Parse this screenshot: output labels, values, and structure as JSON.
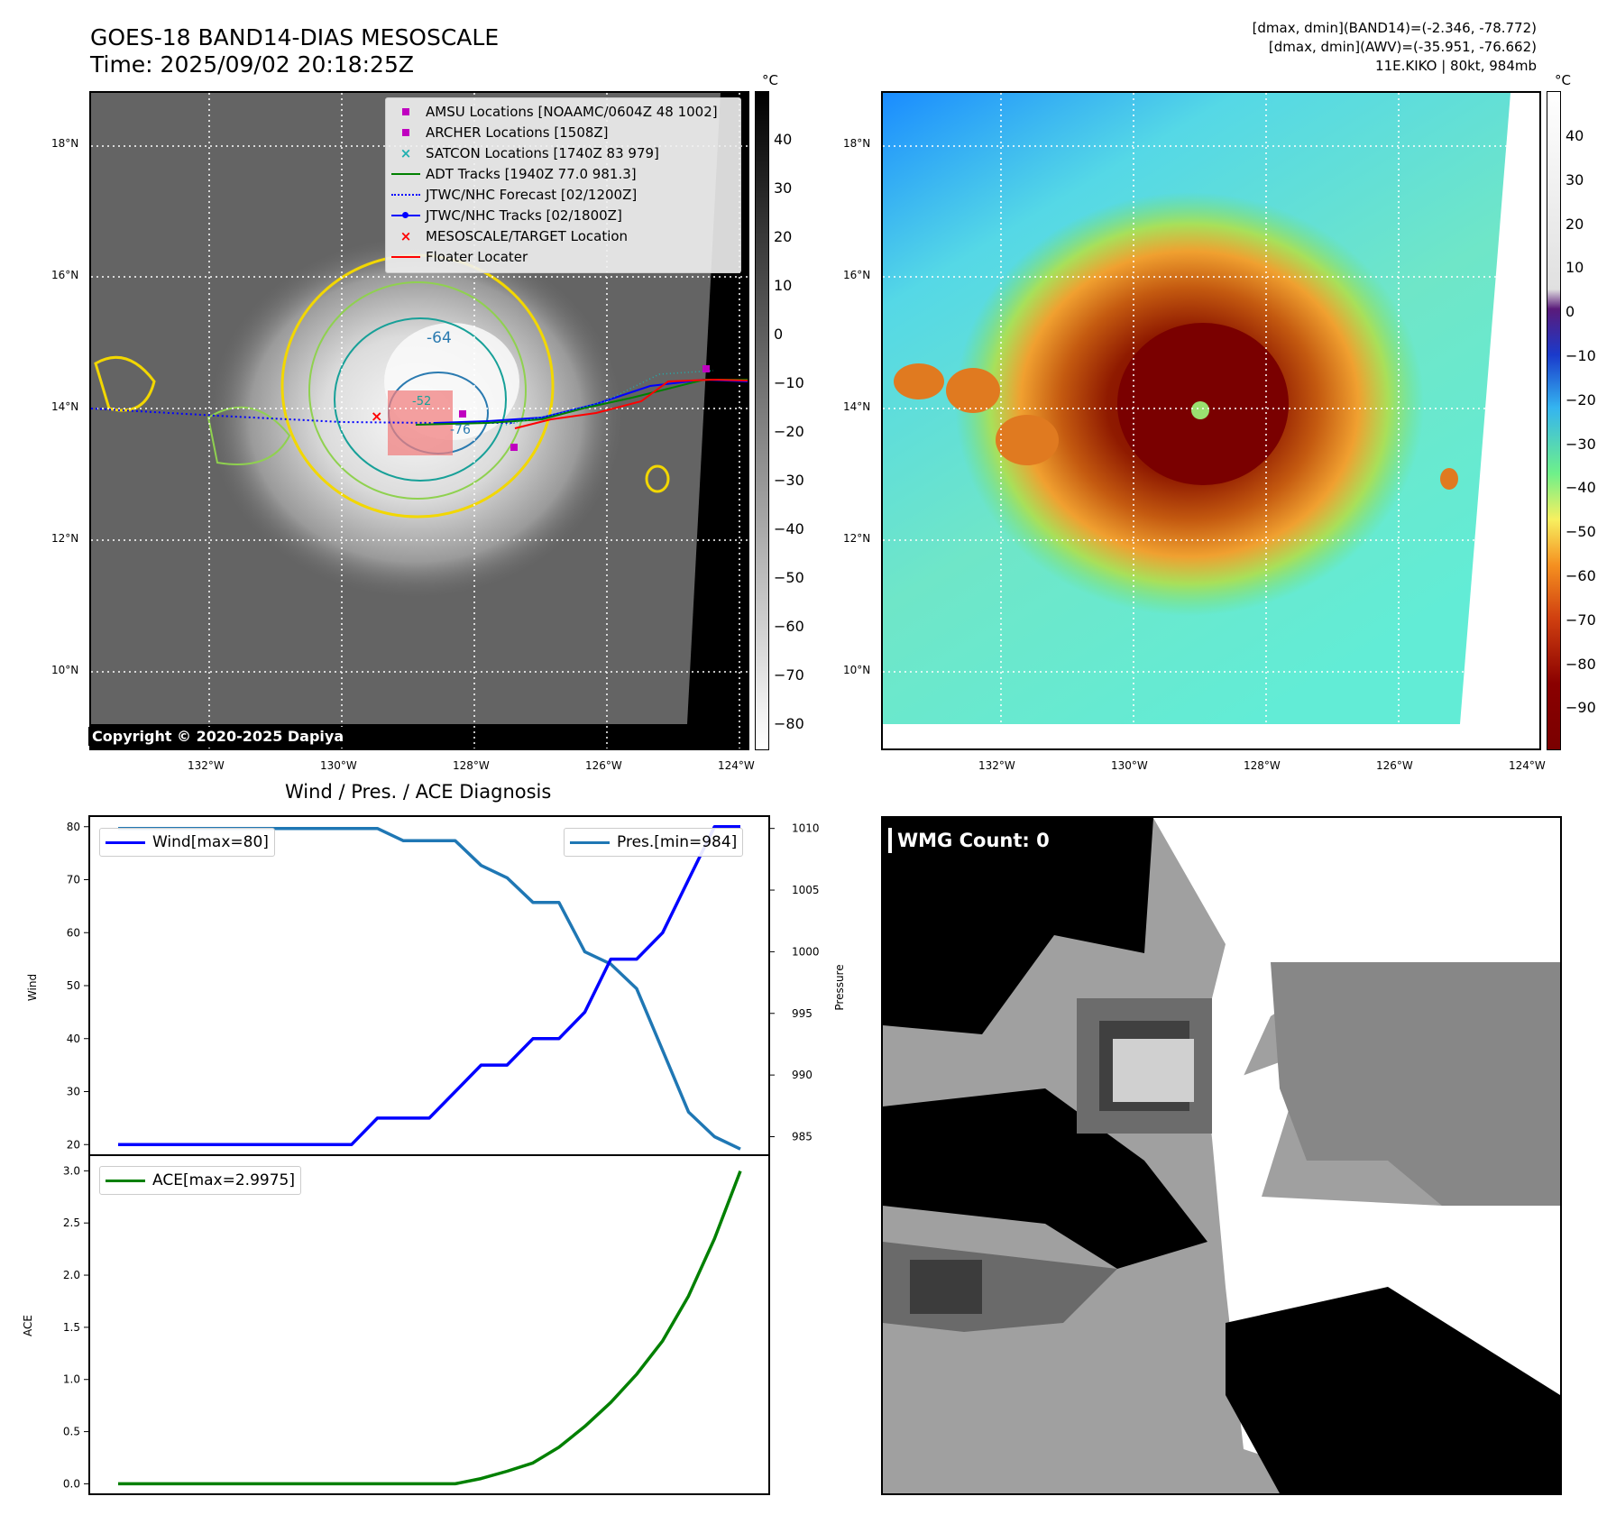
{
  "header": {
    "title_line1": "GOES-18 BAND14-DIAS MESOSCALE",
    "title_line2": "Time: 2025/09/02 20:18:25Z",
    "info_line1": "[dmax, dmin](BAND14)=(-2.346, -78.772)",
    "info_line2": "[dmax, dmin](AWV)=(-35.951, -76.662)",
    "info_line3": "11E.KIKO | 80kt, 984mb"
  },
  "map": {
    "lat_labels": [
      "18°N",
      "16°N",
      "14°N",
      "12°N",
      "10°N"
    ],
    "lon_labels": [
      "132°W",
      "130°W",
      "128°W",
      "126°W",
      "124°W"
    ],
    "copyright": "Copyright © 2020-2025 Dapiya",
    "contour_labels": [
      "-64",
      "-76",
      "-52"
    ],
    "legend": [
      {
        "label": "AMSU Locations [NOAAMC/0604Z 48 1002]",
        "symbol": "square",
        "color": "#c000c0"
      },
      {
        "label": "ARCHER Locations [1508Z]",
        "symbol": "square",
        "color": "#c000c0"
      },
      {
        "label": "SATCON Locations [1740Z 83 979]",
        "symbol": "x",
        "color": "#20b0b0"
      },
      {
        "label": "ADT Tracks [1940Z 77.0 981.3]",
        "symbol": "line",
        "color": "#008000"
      },
      {
        "label": "JTWC/NHC Forecast [02/1200Z]",
        "symbol": "dotted",
        "color": "#0000ff"
      },
      {
        "label": "JTWC/NHC Tracks [02/1800Z]",
        "symbol": "line-dot",
        "color": "#0000ff"
      },
      {
        "label": "MESOSCALE/TARGET Location",
        "symbol": "x",
        "color": "#ff0000"
      },
      {
        "label": "Floater Locater",
        "symbol": "line",
        "color": "#ff0000"
      }
    ]
  },
  "colorbars": {
    "unit": "°C",
    "gray_ticks": [
      "40",
      "30",
      "20",
      "10",
      "0",
      "−10",
      "−20",
      "−30",
      "−40",
      "−50",
      "−60",
      "−70",
      "−80"
    ],
    "color_ticks": [
      "40",
      "30",
      "20",
      "10",
      "0",
      "−10",
      "−20",
      "−30",
      "−40",
      "−50",
      "−60",
      "−70",
      "−80",
      "−90"
    ]
  },
  "wmg": {
    "label": "WMG Count: 0"
  },
  "chart_data": [
    {
      "type": "line",
      "title": "Wind / Pres. / ACE Diagnosis",
      "ylabel": "Wind",
      "y2label": "Pressure",
      "ylim": [
        18,
        82
      ],
      "y2lim": [
        983.5,
        1011
      ],
      "yticks": [
        20,
        30,
        40,
        50,
        60,
        70,
        80
      ],
      "y2ticks": [
        985,
        990,
        995,
        1000,
        1005,
        1010
      ],
      "x": [
        0,
        1,
        2,
        3,
        4,
        5,
        6,
        7,
        8,
        9,
        10,
        11,
        12,
        13,
        14,
        15,
        16,
        17,
        18,
        19,
        20,
        21,
        22,
        23,
        24
      ],
      "series": [
        {
          "name": "Wind",
          "legend": "Wind[max=80]",
          "color": "#0000ff",
          "axis": "left",
          "values": [
            20,
            20,
            20,
            20,
            20,
            20,
            20,
            20,
            20,
            20,
            25,
            25,
            25,
            30,
            35,
            35,
            40,
            40,
            45,
            55,
            55,
            60,
            70,
            80,
            80
          ]
        },
        {
          "name": "Pres.",
          "legend": "Pres.[min=984]",
          "color": "#1f77b4",
          "axis": "right",
          "values": [
            1010,
            1010,
            1010,
            1010,
            1010,
            1010,
            1010,
            1010,
            1010,
            1010,
            1010,
            1009,
            1009,
            1009,
            1007,
            1006,
            1004,
            1004,
            1000,
            999,
            997,
            992,
            987,
            985,
            984
          ]
        }
      ]
    },
    {
      "type": "line",
      "ylabel": "ACE",
      "ylim": [
        -0.1,
        3.15
      ],
      "yticks": [
        "0.0",
        "0.5",
        "1.0",
        "1.5",
        "2.0",
        "2.5",
        "3.0"
      ],
      "x": [
        0,
        1,
        2,
        3,
        4,
        5,
        6,
        7,
        8,
        9,
        10,
        11,
        12,
        13,
        14,
        15,
        16,
        17,
        18,
        19,
        20,
        21,
        22,
        23,
        24
      ],
      "series": [
        {
          "name": "ACE",
          "legend": "ACE[max=2.9975]",
          "color": "#008000",
          "values": [
            0,
            0,
            0,
            0,
            0,
            0,
            0,
            0,
            0,
            0,
            0,
            0,
            0,
            0,
            0.05,
            0.12,
            0.2,
            0.35,
            0.55,
            0.78,
            1.05,
            1.37,
            1.8,
            2.35,
            2.9975
          ]
        }
      ]
    }
  ]
}
